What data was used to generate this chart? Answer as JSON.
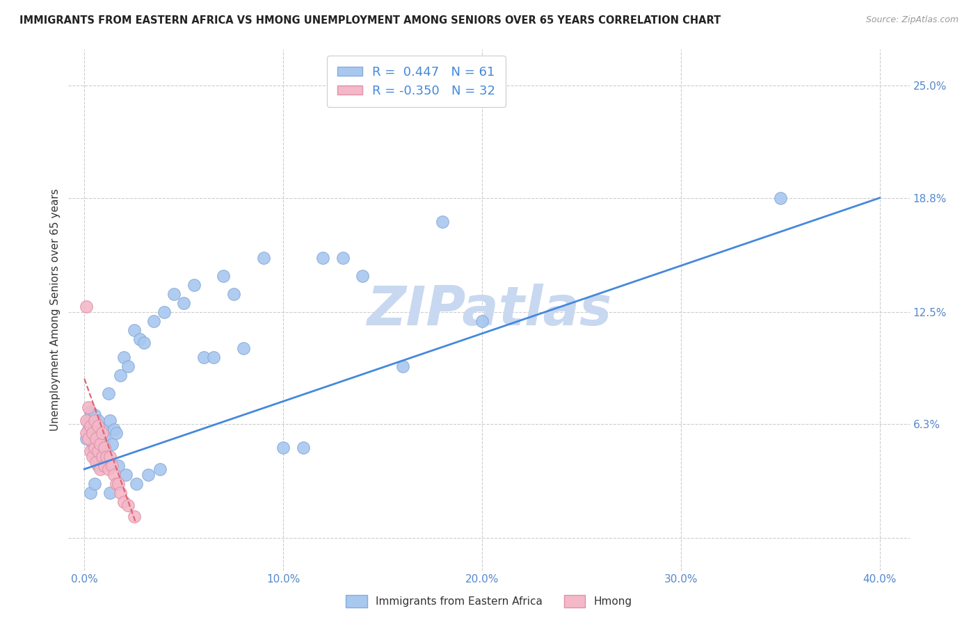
{
  "title": "IMMIGRANTS FROM EASTERN AFRICA VS HMONG UNEMPLOYMENT AMONG SENIORS OVER 65 YEARS CORRELATION CHART",
  "source": "Source: ZipAtlas.com",
  "xlabel_tick_vals": [
    0.0,
    0.1,
    0.2,
    0.3,
    0.4
  ],
  "ylabel": "Unemployment Among Seniors over 65 years",
  "ylabel_ticks": [
    "6.3%",
    "12.5%",
    "18.8%",
    "25.0%"
  ],
  "ylabel_tick_vals": [
    0.063,
    0.125,
    0.188,
    0.25
  ],
  "xlim": [
    -0.008,
    0.415
  ],
  "ylim": [
    -0.018,
    0.27
  ],
  "blue_R": "0.447",
  "blue_N": "61",
  "pink_R": "-0.350",
  "pink_N": "32",
  "blue_color": "#a8c8f0",
  "pink_color": "#f4b8c8",
  "trendline_blue_color": "#4488dd",
  "trendline_pink_color": "#e06070",
  "watermark": "ZIPatlas",
  "watermark_color": "#c8d8f0",
  "blue_scatter_x": [
    0.001,
    0.002,
    0.002,
    0.003,
    0.003,
    0.004,
    0.004,
    0.005,
    0.005,
    0.006,
    0.006,
    0.007,
    0.007,
    0.008,
    0.008,
    0.009,
    0.009,
    0.01,
    0.01,
    0.011,
    0.012,
    0.013,
    0.014,
    0.015,
    0.016,
    0.018,
    0.02,
    0.022,
    0.025,
    0.028,
    0.03,
    0.035,
    0.04,
    0.045,
    0.05,
    0.055,
    0.06,
    0.065,
    0.07,
    0.075,
    0.08,
    0.09,
    0.1,
    0.11,
    0.12,
    0.13,
    0.14,
    0.16,
    0.18,
    0.2,
    0.003,
    0.005,
    0.007,
    0.01,
    0.013,
    0.017,
    0.021,
    0.026,
    0.032,
    0.038,
    0.35
  ],
  "blue_scatter_y": [
    0.055,
    0.06,
    0.065,
    0.058,
    0.07,
    0.05,
    0.062,
    0.052,
    0.068,
    0.045,
    0.058,
    0.048,
    0.065,
    0.04,
    0.055,
    0.048,
    0.06,
    0.042,
    0.055,
    0.045,
    0.08,
    0.065,
    0.052,
    0.06,
    0.058,
    0.09,
    0.1,
    0.095,
    0.115,
    0.11,
    0.108,
    0.12,
    0.125,
    0.135,
    0.13,
    0.14,
    0.1,
    0.1,
    0.145,
    0.135,
    0.105,
    0.155,
    0.05,
    0.05,
    0.155,
    0.155,
    0.145,
    0.095,
    0.175,
    0.12,
    0.025,
    0.03,
    0.04,
    0.05,
    0.025,
    0.04,
    0.035,
    0.03,
    0.035,
    0.038,
    0.188
  ],
  "pink_scatter_x": [
    0.001,
    0.001,
    0.002,
    0.002,
    0.003,
    0.003,
    0.004,
    0.004,
    0.005,
    0.005,
    0.006,
    0.006,
    0.007,
    0.007,
    0.008,
    0.008,
    0.009,
    0.009,
    0.01,
    0.01,
    0.011,
    0.012,
    0.013,
    0.014,
    0.015,
    0.016,
    0.017,
    0.018,
    0.02,
    0.022,
    0.025,
    0.001
  ],
  "pink_scatter_y": [
    0.058,
    0.065,
    0.055,
    0.072,
    0.048,
    0.062,
    0.045,
    0.058,
    0.05,
    0.065,
    0.042,
    0.055,
    0.048,
    0.062,
    0.038,
    0.052,
    0.045,
    0.058,
    0.04,
    0.05,
    0.045,
    0.038,
    0.045,
    0.04,
    0.035,
    0.03,
    0.03,
    0.025,
    0.02,
    0.018,
    0.012,
    0.128
  ],
  "blue_trend_x": [
    0.0,
    0.4
  ],
  "blue_trend_y": [
    0.038,
    0.188
  ],
  "pink_trend_x": [
    0.0,
    0.026
  ],
  "pink_trend_y": [
    0.088,
    0.008
  ],
  "legend_label_blue": "Immigrants from Eastern Africa",
  "legend_label_pink": "Hmong"
}
